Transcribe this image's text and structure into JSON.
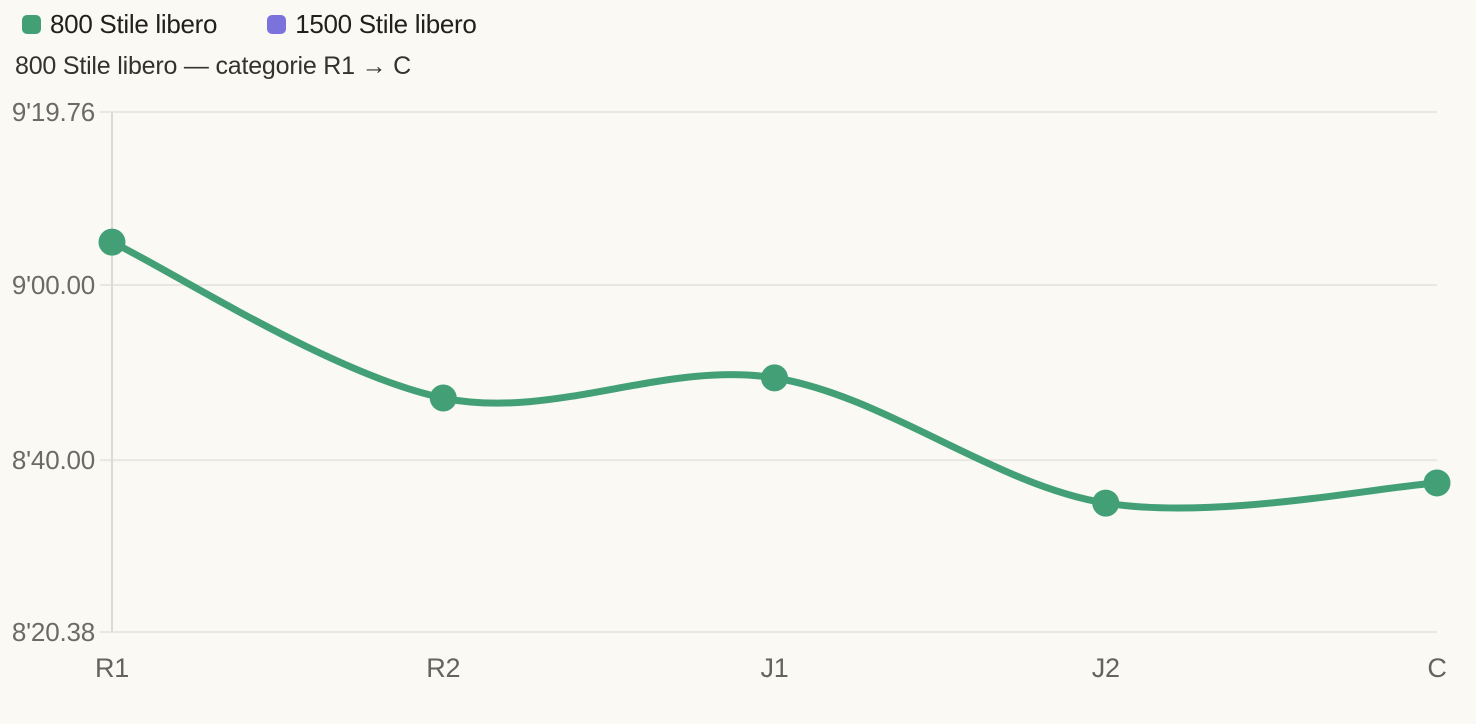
{
  "page": {
    "background_color": "#faf9f4"
  },
  "legend": {
    "items": [
      {
        "label": "800 Stile libero",
        "color": "#43a076"
      },
      {
        "label": "1500 Stile libero",
        "color": "#7b72db"
      }
    ]
  },
  "subtitle": "800 Stile libero — categorie R1 → C",
  "chart_data": {
    "type": "line",
    "title": "800 Stile libero — categorie R1 → C",
    "categories": [
      "R1",
      "R2",
      "J1",
      "J2",
      "C"
    ],
    "series": [
      {
        "name": "800 Stile libero",
        "color": "#43a076",
        "visible": true,
        "values_seconds": [
          544.9,
          527.1,
          529.4,
          515.1,
          517.4
        ],
        "value_labels": [
          "9'04.9",
          "8'47.1",
          "8'49.4",
          "8'35.1",
          "8'37.4"
        ]
      },
      {
        "name": "1500 Stile libero",
        "color": "#7b72db",
        "visible": false,
        "values_seconds": [],
        "value_labels": []
      }
    ],
    "y_axis": {
      "min_seconds": 500.38,
      "max_seconds": 559.76,
      "ticks": [
        {
          "label": "9'19.76",
          "seconds": 559.76
        },
        {
          "label": "9'00.00",
          "seconds": 540.0
        },
        {
          "label": "8'40.00",
          "seconds": 520.0
        },
        {
          "label": "8'20.38",
          "seconds": 500.38
        }
      ]
    },
    "grid": true,
    "legend_position": "top-left",
    "styles": {
      "grid_color": "#e9e7e1",
      "axis_line_color": "#dcdad4",
      "tick_label_color": "#6b6a66",
      "category_label_color": "#64635f"
    }
  }
}
